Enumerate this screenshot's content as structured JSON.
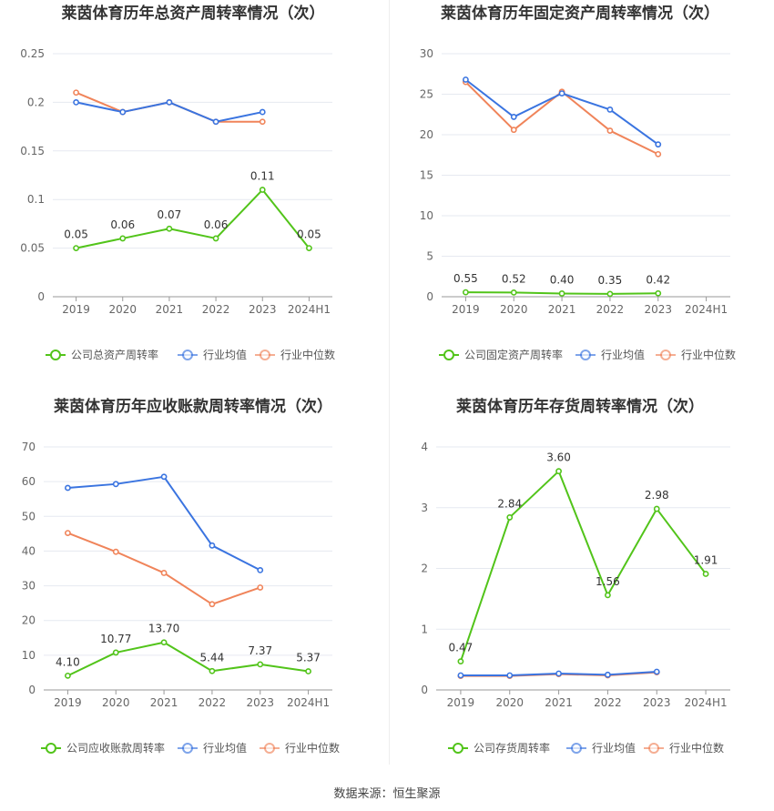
{
  "source_label": "数据来源：恒生聚源",
  "colors": {
    "company": "#52c41a",
    "avg": "#3a74e0",
    "median": "#f0845a",
    "grid": "#e6e9f0",
    "axis": "#999999",
    "tick": "#666666"
  },
  "chart_data": [
    {
      "type": "line",
      "title": "莱茵体育历年总资产周转率情况（次）",
      "categories": [
        "2019",
        "2020",
        "2021",
        "2022",
        "2023",
        "2024H1"
      ],
      "ylim": [
        0,
        0.25
      ],
      "yticks": [
        "0",
        "0.05",
        "0.1",
        "0.15",
        "0.2",
        "0.25"
      ],
      "series": [
        {
          "name": "公司总资产周转率",
          "role": "company",
          "values": [
            0.05,
            0.06,
            0.07,
            0.06,
            0.11,
            0.05
          ],
          "labels": [
            "0.05",
            "0.06",
            "0.07",
            "0.06",
            "0.11",
            "0.05"
          ]
        },
        {
          "name": "行业均值",
          "role": "avg",
          "values": [
            0.2,
            0.19,
            0.2,
            0.18,
            0.19,
            null
          ]
        },
        {
          "name": "行业中位数",
          "role": "median",
          "values": [
            0.21,
            0.19,
            0.2,
            0.18,
            0.18,
            null
          ]
        }
      ]
    },
    {
      "type": "line",
      "title": "莱茵体育历年固定资产周转率情况（次）",
      "categories": [
        "2019",
        "2020",
        "2021",
        "2022",
        "2023",
        "2024H1"
      ],
      "ylim": [
        0,
        30
      ],
      "yticks": [
        "0",
        "5",
        "10",
        "15",
        "20",
        "25",
        "30"
      ],
      "series": [
        {
          "name": "公司固定资产周转率",
          "role": "company",
          "values": [
            0.55,
            0.52,
            0.4,
            0.35,
            0.42,
            null
          ],
          "labels": [
            "0.55",
            "0.52",
            "0.40",
            "0.35",
            "0.42",
            null
          ]
        },
        {
          "name": "行业均值",
          "role": "avg",
          "values": [
            26.8,
            22.2,
            25.1,
            23.1,
            18.8,
            null
          ]
        },
        {
          "name": "行业中位数",
          "role": "median",
          "values": [
            26.5,
            20.6,
            25.3,
            20.5,
            17.6,
            null
          ]
        }
      ]
    },
    {
      "type": "line",
      "title": "莱茵体育历年应收账款周转率情况（次）",
      "categories": [
        "2019",
        "2020",
        "2021",
        "2022",
        "2023",
        "2024H1"
      ],
      "ylim": [
        0,
        70
      ],
      "yticks": [
        "0",
        "10",
        "20",
        "30",
        "40",
        "50",
        "60",
        "70"
      ],
      "series": [
        {
          "name": "公司应收账款周转率",
          "role": "company",
          "values": [
            4.1,
            10.77,
            13.7,
            5.44,
            7.37,
            5.37
          ],
          "labels": [
            "4.10",
            "10.77",
            "13.70",
            "5.44",
            "7.37",
            "5.37"
          ]
        },
        {
          "name": "行业均值",
          "role": "avg",
          "values": [
            58.2,
            59.3,
            61.4,
            41.6,
            34.5,
            null
          ]
        },
        {
          "name": "行业中位数",
          "role": "median",
          "values": [
            45.2,
            39.8,
            33.7,
            24.7,
            29.5,
            null
          ]
        }
      ]
    },
    {
      "type": "line",
      "title": "莱茵体育历年存货周转率情况（次）",
      "categories": [
        "2019",
        "2020",
        "2021",
        "2022",
        "2023",
        "2024H1"
      ],
      "ylim": [
        0,
        4
      ],
      "yticks": [
        "0",
        "1",
        "2",
        "3",
        "4"
      ],
      "series": [
        {
          "name": "公司存货周转率",
          "role": "company",
          "values": [
            0.47,
            2.84,
            3.6,
            1.56,
            2.98,
            1.91
          ],
          "labels": [
            "0.47",
            "2.84",
            "3.60",
            "1.56",
            "2.98",
            "1.91"
          ]
        },
        {
          "name": "行业均值",
          "role": "avg",
          "values": [
            0.24,
            0.24,
            0.27,
            0.25,
            0.3,
            null
          ]
        },
        {
          "name": "行业中位数",
          "role": "median",
          "values": [
            0.23,
            0.23,
            0.26,
            0.24,
            0.29,
            null
          ]
        }
      ]
    }
  ]
}
